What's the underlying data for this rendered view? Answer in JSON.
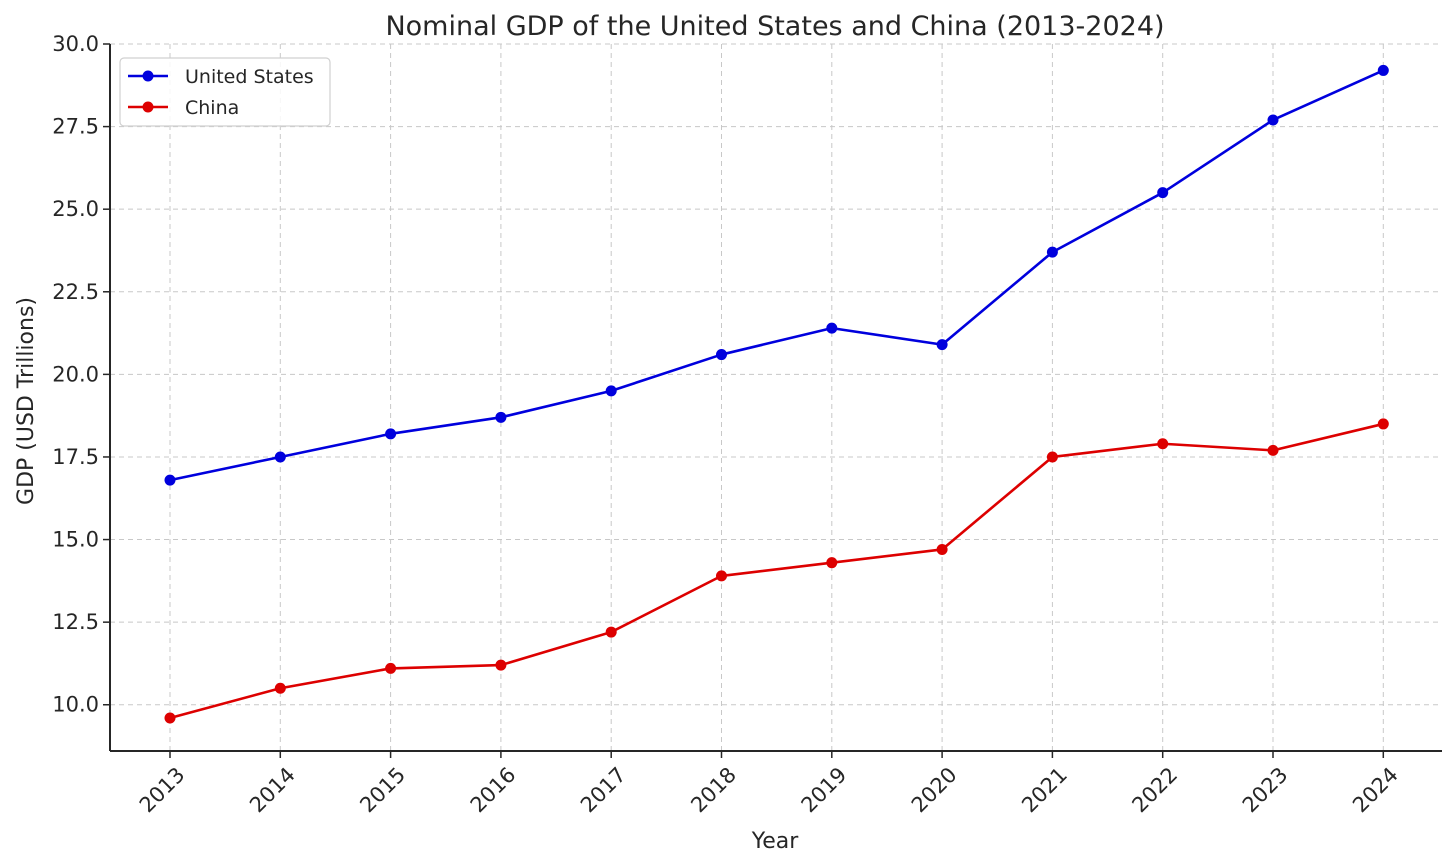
{
  "chart_data": {
    "type": "line",
    "title": "Nominal GDP of the United States and China (2013-2024)",
    "xlabel": "Year",
    "ylabel": "GDP (USD Trillions)",
    "x": [
      "2013",
      "2014",
      "2015",
      "2016",
      "2017",
      "2018",
      "2019",
      "2020",
      "2021",
      "2022",
      "2023",
      "2024"
    ],
    "ylim": [
      8.6,
      30.0
    ],
    "yticks": [
      "10.0",
      "12.5",
      "15.0",
      "17.5",
      "20.0",
      "22.5",
      "25.0",
      "27.5",
      "30.0"
    ],
    "grid": true,
    "legend_position": "top-left",
    "series": [
      {
        "name": "United States",
        "color": "#0000dd",
        "marker": "circle",
        "values": [
          16.8,
          17.5,
          18.2,
          18.7,
          19.5,
          20.6,
          21.4,
          20.9,
          23.7,
          25.5,
          27.7,
          29.2
        ]
      },
      {
        "name": "China",
        "color": "#dd0000",
        "marker": "circle",
        "values": [
          9.6,
          10.5,
          11.1,
          11.2,
          12.2,
          13.9,
          14.3,
          14.7,
          17.5,
          17.9,
          17.7,
          18.5
        ]
      }
    ]
  }
}
